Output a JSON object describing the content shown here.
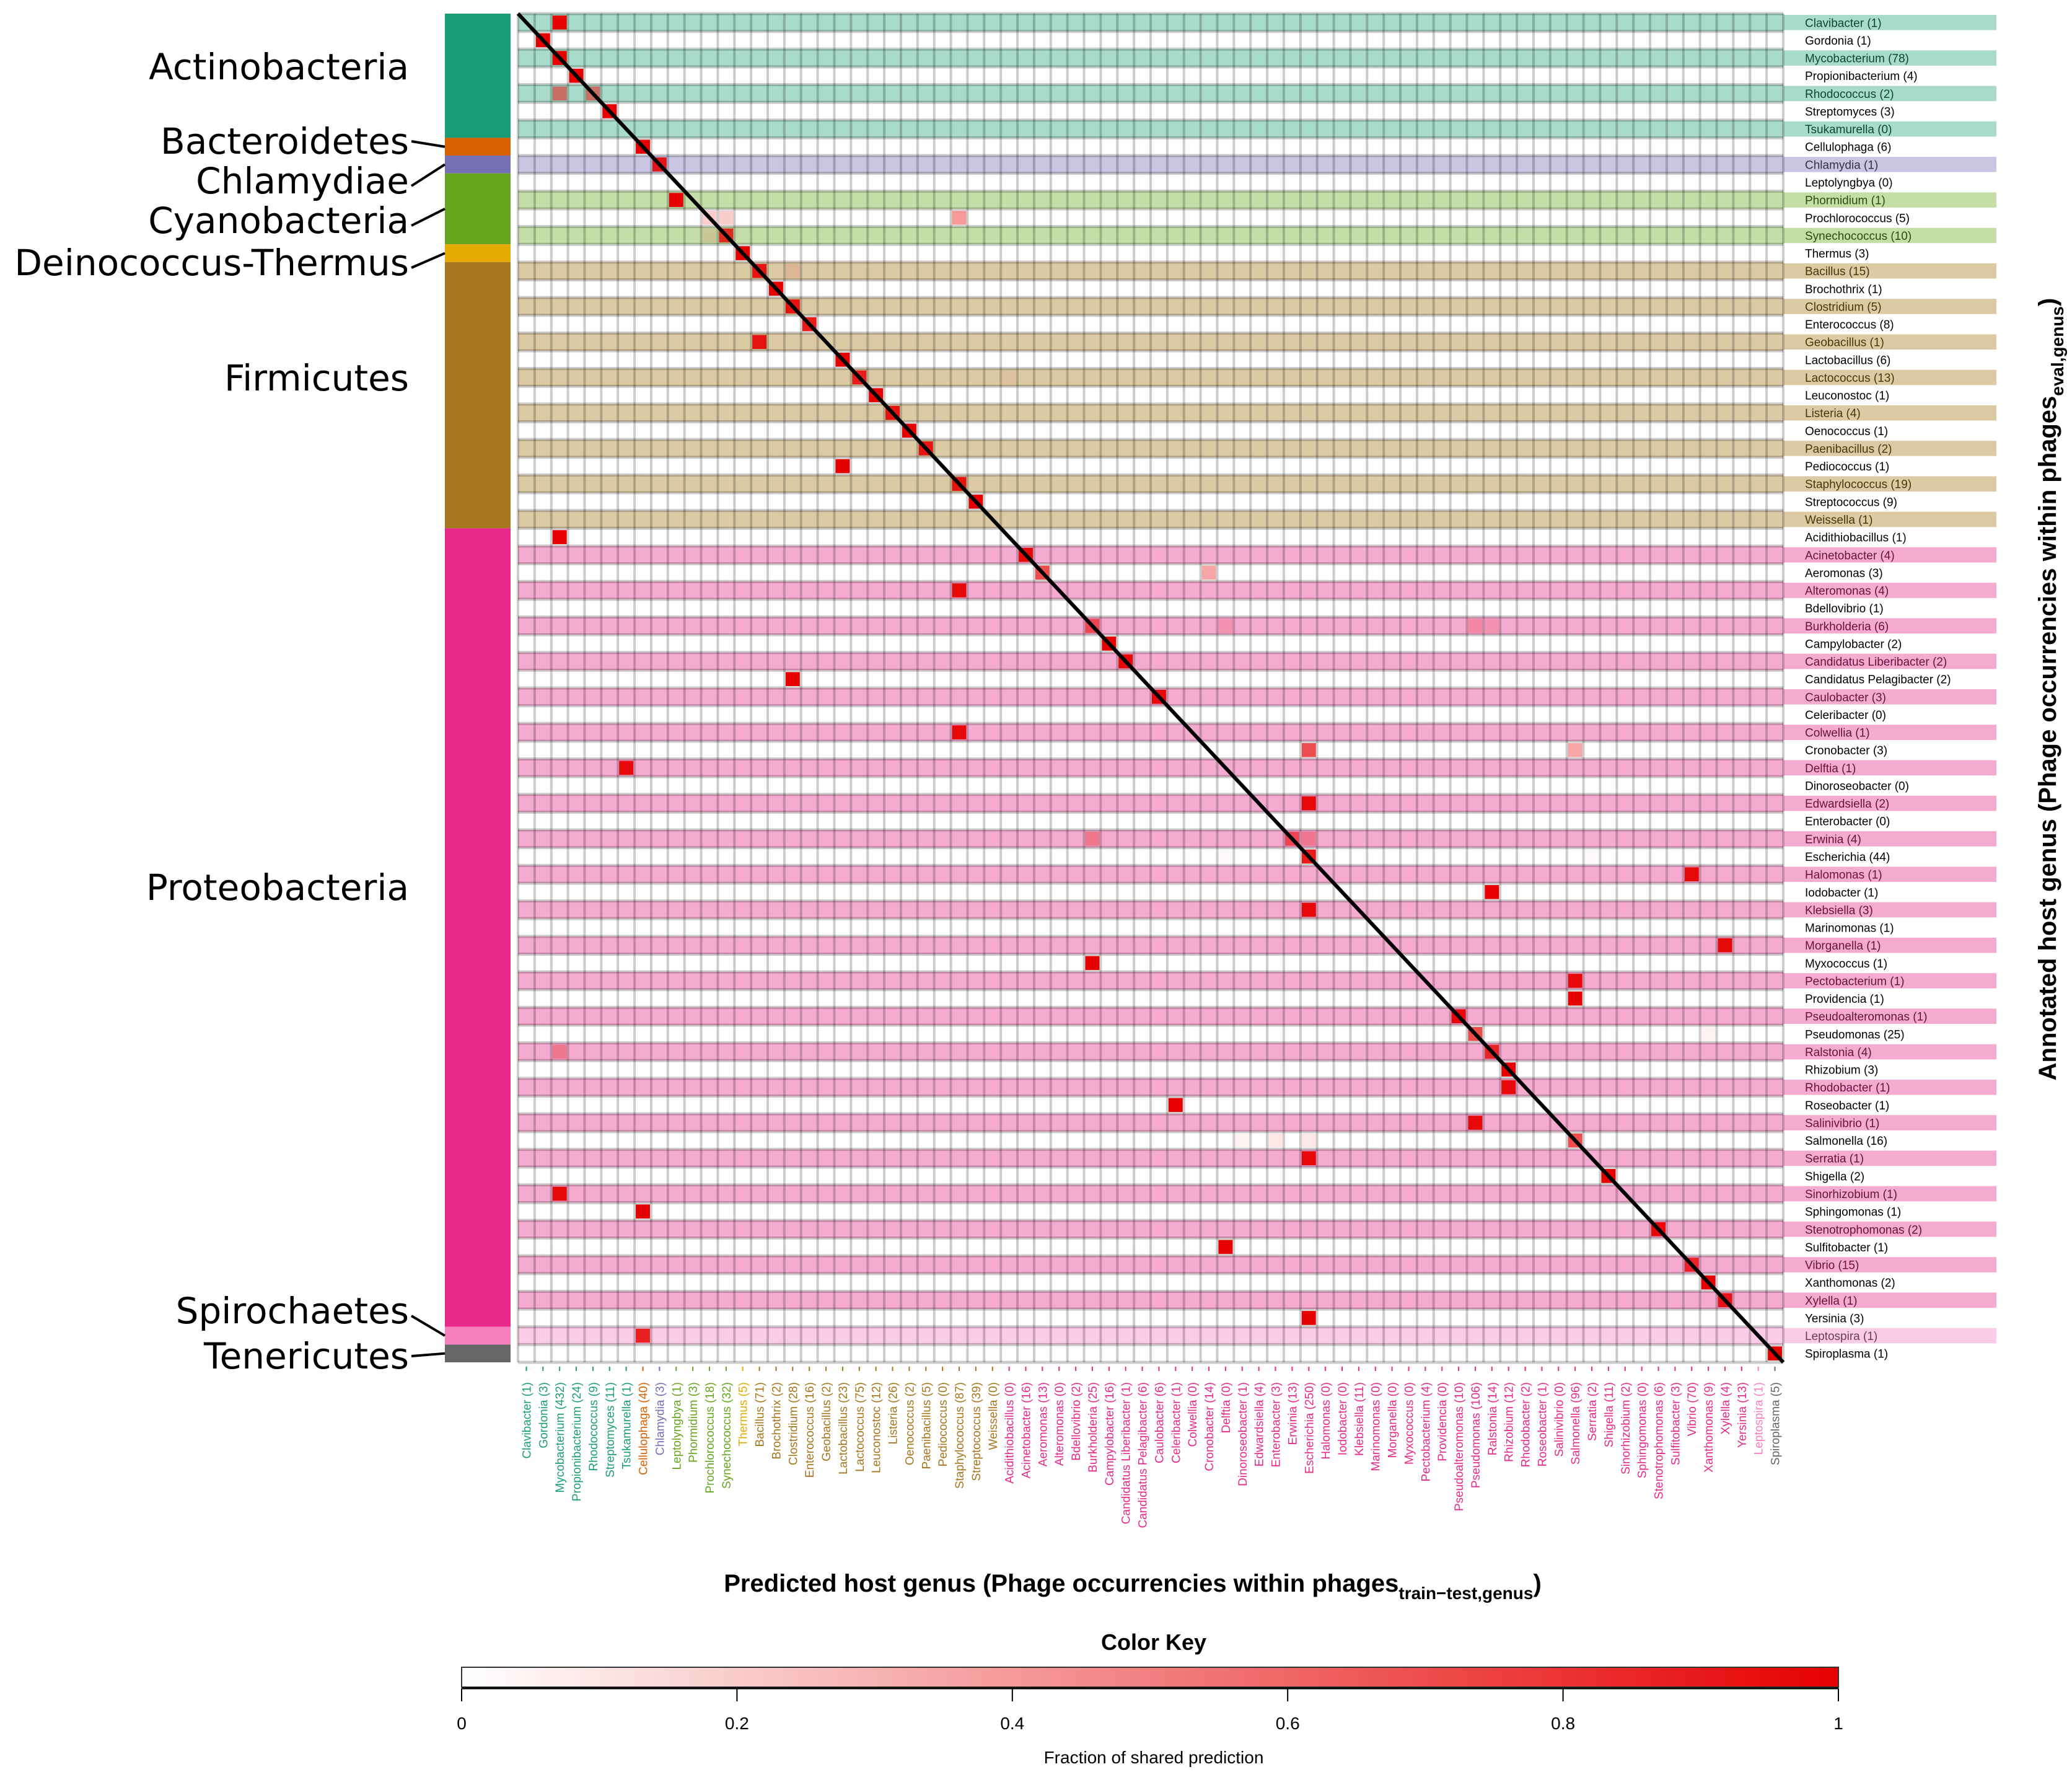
{
  "chart_data": {
    "type": "heatmap",
    "title": "",
    "xlabel": "Predicted host genus (Phage occurrencies within phages",
    "xlabel_subscript": "train−test,genus",
    "xlabel_close": ")",
    "ylabel": "Annotated host genus (Phage occurrencies within phages",
    "ylabel_subscript": "eval,genus",
    "ylabel_close": ")",
    "value_range": [
      0,
      1
    ],
    "color_key": {
      "title": "Color Key",
      "xlabel": "Fraction of shared prediction",
      "ticks": [
        "0",
        "0.2",
        "0.4",
        "0.6",
        "0.8",
        "1"
      ],
      "tick_values": [
        0,
        0.2,
        0.4,
        0.6,
        0.8,
        1
      ],
      "low_color": "#ffffff",
      "high_color": "#e60000"
    },
    "phyla": [
      {
        "name": "Actinobacteria",
        "color": "#1b9e77",
        "row_tint": "#a8dbc9",
        "row_count": 7
      },
      {
        "name": "Bacteroidetes",
        "color": "#d95f02",
        "row_tint": "#f3c29e",
        "row_count": 1
      },
      {
        "name": "Chlamydiae",
        "color": "#7570b3",
        "row_tint": "#c8c6e2",
        "row_count": 1
      },
      {
        "name": "Cyanobacteria",
        "color": "#66a61e",
        "row_tint": "#c5dea8",
        "row_count": 4
      },
      {
        "name": "Deinococcus-Thermus",
        "color": "#e6ab02",
        "row_tint": "#f6de99",
        "row_count": 1
      },
      {
        "name": "Firmicutes",
        "color": "#a6761d",
        "row_tint": "#dccaa5",
        "row_count": 15
      },
      {
        "name": "Proteobacteria",
        "color": "#e7298a",
        "row_tint": "#f5aacf",
        "row_count": 45
      },
      {
        "name": "Spirochaetes",
        "color": "#f781bf",
        "row_tint": "#fbcce5",
        "row_count": 1
      },
      {
        "name": "Tenericutes",
        "color": "#666666",
        "row_tint": "#d1d1d1",
        "row_count": 1
      }
    ],
    "rows": [
      {
        "label": "Clavibacter (1)",
        "phylum": 0
      },
      {
        "label": "Gordonia (1)",
        "phylum": 0
      },
      {
        "label": "Mycobacterium (78)",
        "phylum": 0
      },
      {
        "label": "Propionibacterium (4)",
        "phylum": 0
      },
      {
        "label": "Rhodococcus (2)",
        "phylum": 0
      },
      {
        "label": "Streptomyces (3)",
        "phylum": 0
      },
      {
        "label": "Tsukamurella (0)",
        "phylum": 0
      },
      {
        "label": "Cellulophaga (6)",
        "phylum": 1
      },
      {
        "label": "Chlamydia (1)",
        "phylum": 2
      },
      {
        "label": "Leptolyngbya (0)",
        "phylum": 3
      },
      {
        "label": "Phormidium (1)",
        "phylum": 3
      },
      {
        "label": "Prochlorococcus (5)",
        "phylum": 3
      },
      {
        "label": "Synechococcus (10)",
        "phylum": 3
      },
      {
        "label": "Thermus (3)",
        "phylum": 4
      },
      {
        "label": "Bacillus (15)",
        "phylum": 5
      },
      {
        "label": "Brochothrix (1)",
        "phylum": 5
      },
      {
        "label": "Clostridium (5)",
        "phylum": 5
      },
      {
        "label": "Enterococcus (8)",
        "phylum": 5
      },
      {
        "label": "Geobacillus (1)",
        "phylum": 5
      },
      {
        "label": "Lactobacillus (6)",
        "phylum": 5
      },
      {
        "label": "Lactococcus (13)",
        "phylum": 5
      },
      {
        "label": "Leuconostoc (1)",
        "phylum": 5
      },
      {
        "label": "Listeria (4)",
        "phylum": 5
      },
      {
        "label": "Oenococcus (1)",
        "phylum": 5
      },
      {
        "label": "Paenibacillus (2)",
        "phylum": 5
      },
      {
        "label": "Pediococcus (1)",
        "phylum": 5
      },
      {
        "label": "Staphylococcus (19)",
        "phylum": 5
      },
      {
        "label": "Streptococcus (9)",
        "phylum": 5
      },
      {
        "label": "Weissella (1)",
        "phylum": 5
      },
      {
        "label": "Acidithiobacillus (1)",
        "phylum": 6
      },
      {
        "label": "Acinetobacter (4)",
        "phylum": 6
      },
      {
        "label": "Aeromonas (3)",
        "phylum": 6
      },
      {
        "label": "Alteromonas (4)",
        "phylum": 6
      },
      {
        "label": "Bdellovibrio (1)",
        "phylum": 6
      },
      {
        "label": "Burkholderia (6)",
        "phylum": 6
      },
      {
        "label": "Campylobacter (2)",
        "phylum": 6
      },
      {
        "label": "Candidatus Liberibacter (2)",
        "phylum": 6
      },
      {
        "label": "Candidatus Pelagibacter (2)",
        "phylum": 6
      },
      {
        "label": "Caulobacter (3)",
        "phylum": 6
      },
      {
        "label": "Celeribacter (0)",
        "phylum": 6
      },
      {
        "label": "Colwellia (1)",
        "phylum": 6
      },
      {
        "label": "Cronobacter (3)",
        "phylum": 6
      },
      {
        "label": "Delftia (1)",
        "phylum": 6
      },
      {
        "label": "Dinoroseobacter (0)",
        "phylum": 6
      },
      {
        "label": "Edwardsiella (2)",
        "phylum": 6
      },
      {
        "label": "Enterobacter (0)",
        "phylum": 6
      },
      {
        "label": "Erwinia (4)",
        "phylum": 6
      },
      {
        "label": "Escherichia (44)",
        "phylum": 6
      },
      {
        "label": "Halomonas (1)",
        "phylum": 6
      },
      {
        "label": "Iodobacter (1)",
        "phylum": 6
      },
      {
        "label": "Klebsiella (3)",
        "phylum": 6
      },
      {
        "label": "Marinomonas (1)",
        "phylum": 6
      },
      {
        "label": "Morganella (1)",
        "phylum": 6
      },
      {
        "label": "Myxococcus (1)",
        "phylum": 6
      },
      {
        "label": "Pectobacterium (1)",
        "phylum": 6
      },
      {
        "label": "Providencia (1)",
        "phylum": 6
      },
      {
        "label": "Pseudoalteromonas (1)",
        "phylum": 6
      },
      {
        "label": "Pseudomonas (25)",
        "phylum": 6
      },
      {
        "label": "Ralstonia (4)",
        "phylum": 6
      },
      {
        "label": "Rhizobium (3)",
        "phylum": 6
      },
      {
        "label": "Rhodobacter (1)",
        "phylum": 6
      },
      {
        "label": "Roseobacter (1)",
        "phylum": 6
      },
      {
        "label": "Salinivibrio (1)",
        "phylum": 6
      },
      {
        "label": "Salmonella (16)",
        "phylum": 6
      },
      {
        "label": "Serratia (1)",
        "phylum": 6
      },
      {
        "label": "Shigella (2)",
        "phylum": 6
      },
      {
        "label": "Sinorhizobium (1)",
        "phylum": 6
      },
      {
        "label": "Sphingomonas (1)",
        "phylum": 6
      },
      {
        "label": "Stenotrophomonas (2)",
        "phylum": 6
      },
      {
        "label": "Sulfitobacter (1)",
        "phylum": 6
      },
      {
        "label": "Vibrio (15)",
        "phylum": 6
      },
      {
        "label": "Xanthomonas (2)",
        "phylum": 6
      },
      {
        "label": "Xylella (1)",
        "phylum": 6
      },
      {
        "label": "Yersinia (3)",
        "phylum": 6
      },
      {
        "label": "Leptospira (1)",
        "phylum": 7
      },
      {
        "label": "Spiroplasma (1)",
        "phylum": 8
      }
    ],
    "columns": [
      {
        "label": "Clavibacter (1)",
        "phylum": 0
      },
      {
        "label": "Gordonia (3)",
        "phylum": 0
      },
      {
        "label": "Mycobacterium (432)",
        "phylum": 0
      },
      {
        "label": "Propionibacterium (24)",
        "phylum": 0
      },
      {
        "label": "Rhodococcus (9)",
        "phylum": 0
      },
      {
        "label": "Streptomyces (11)",
        "phylum": 0
      },
      {
        "label": "Tsukamurella (1)",
        "phylum": 0
      },
      {
        "label": "Cellulophaga (40)",
        "phylum": 1
      },
      {
        "label": "Chlamydia (3)",
        "phylum": 2
      },
      {
        "label": "Leptolyngbya (1)",
        "phylum": 3
      },
      {
        "label": "Phormidium (3)",
        "phylum": 3
      },
      {
        "label": "Prochlorococcus (18)",
        "phylum": 3
      },
      {
        "label": "Synechococcus (32)",
        "phylum": 3
      },
      {
        "label": "Thermus (5)",
        "phylum": 4
      },
      {
        "label": "Bacillus (71)",
        "phylum": 5
      },
      {
        "label": "Brochothrix (2)",
        "phylum": 5
      },
      {
        "label": "Clostridium (28)",
        "phylum": 5
      },
      {
        "label": "Enterococcus (16)",
        "phylum": 5
      },
      {
        "label": "Geobacillus (2)",
        "phylum": 5
      },
      {
        "label": "Lactobacillus (23)",
        "phylum": 5
      },
      {
        "label": "Lactococcus (75)",
        "phylum": 5
      },
      {
        "label": "Leuconostoc (12)",
        "phylum": 5
      },
      {
        "label": "Listeria (26)",
        "phylum": 5
      },
      {
        "label": "Oenococcus (2)",
        "phylum": 5
      },
      {
        "label": "Paenibacillus (5)",
        "phylum": 5
      },
      {
        "label": "Pediococcus (0)",
        "phylum": 5
      },
      {
        "label": "Staphylococcus (87)",
        "phylum": 5
      },
      {
        "label": "Streptococcus (39)",
        "phylum": 5
      },
      {
        "label": "Weissella (0)",
        "phylum": 5
      },
      {
        "label": "Acidithiobacillus (0)",
        "phylum": 6
      },
      {
        "label": "Acinetobacter (16)",
        "phylum": 6
      },
      {
        "label": "Aeromonas (13)",
        "phylum": 6
      },
      {
        "label": "Alteromonas (0)",
        "phylum": 6
      },
      {
        "label": "Bdellovibrio (2)",
        "phylum": 6
      },
      {
        "label": "Burkholderia (25)",
        "phylum": 6
      },
      {
        "label": "Campylobacter (16)",
        "phylum": 6
      },
      {
        "label": "Candidatus Liberibacter (1)",
        "phylum": 6
      },
      {
        "label": "Candidatus Pelagibacter (6)",
        "phylum": 6
      },
      {
        "label": "Caulobacter (6)",
        "phylum": 6
      },
      {
        "label": "Celeribacter (1)",
        "phylum": 6
      },
      {
        "label": "Colwellia (0)",
        "phylum": 6
      },
      {
        "label": "Cronobacter (14)",
        "phylum": 6
      },
      {
        "label": "Delftia (0)",
        "phylum": 6
      },
      {
        "label": "Dinoroseobacter (1)",
        "phylum": 6
      },
      {
        "label": "Edwardsiella (4)",
        "phylum": 6
      },
      {
        "label": "Enterobacter (3)",
        "phylum": 6
      },
      {
        "label": "Erwinia (13)",
        "phylum": 6
      },
      {
        "label": "Escherichia (250)",
        "phylum": 6
      },
      {
        "label": "Halomonas (0)",
        "phylum": 6
      },
      {
        "label": "Iodobacter (0)",
        "phylum": 6
      },
      {
        "label": "Klebsiella (11)",
        "phylum": 6
      },
      {
        "label": "Marinomonas (0)",
        "phylum": 6
      },
      {
        "label": "Morganella (0)",
        "phylum": 6
      },
      {
        "label": "Myxococcus (0)",
        "phylum": 6
      },
      {
        "label": "Pectobacterium (4)",
        "phylum": 6
      },
      {
        "label": "Providencia (0)",
        "phylum": 6
      },
      {
        "label": "Pseudoalteromonas (10)",
        "phylum": 6
      },
      {
        "label": "Pseudomonas (106)",
        "phylum": 6
      },
      {
        "label": "Ralstonia (14)",
        "phylum": 6
      },
      {
        "label": "Rhizobium (12)",
        "phylum": 6
      },
      {
        "label": "Rhodobacter (2)",
        "phylum": 6
      },
      {
        "label": "Roseobacter (1)",
        "phylum": 6
      },
      {
        "label": "Salinivibrio (0)",
        "phylum": 6
      },
      {
        "label": "Salmonella (96)",
        "phylum": 6
      },
      {
        "label": "Serratia (2)",
        "phylum": 6
      },
      {
        "label": "Shigella (11)",
        "phylum": 6
      },
      {
        "label": "Sinorhizobium (2)",
        "phylum": 6
      },
      {
        "label": "Sphingomonas (0)",
        "phylum": 6
      },
      {
        "label": "Stenotrophomonas (6)",
        "phylum": 6
      },
      {
        "label": "Sulfitobacter (3)",
        "phylum": 6
      },
      {
        "label": "Vibrio (70)",
        "phylum": 6
      },
      {
        "label": "Xanthomonas (9)",
        "phylum": 6
      },
      {
        "label": "Xylella (4)",
        "phylum": 6
      },
      {
        "label": "Yersinia (13)",
        "phylum": 6
      },
      {
        "label": "Leptospira (1)",
        "phylum": 7
      },
      {
        "label": "Spiroplasma (5)",
        "phylum": 8
      }
    ],
    "cells": [
      [
        0,
        2,
        1.0
      ],
      [
        1,
        1,
        1.0
      ],
      [
        2,
        2,
        1.0
      ],
      [
        3,
        3,
        1.0
      ],
      [
        4,
        2,
        0.5
      ],
      [
        4,
        4,
        0.5
      ],
      [
        5,
        5,
        1.0
      ],
      [
        7,
        7,
        1.0
      ],
      [
        8,
        8,
        0.9
      ],
      [
        10,
        9,
        1.0
      ],
      [
        11,
        11,
        0.2
      ],
      [
        11,
        12,
        0.2
      ],
      [
        11,
        26,
        0.4
      ],
      [
        12,
        11,
        0.1
      ],
      [
        12,
        12,
        0.8
      ],
      [
        13,
        13,
        1.0
      ],
      [
        14,
        14,
        0.9
      ],
      [
        14,
        16,
        0.1
      ],
      [
        15,
        15,
        1.0
      ],
      [
        16,
        16,
        0.9
      ],
      [
        17,
        17,
        0.9
      ],
      [
        18,
        14,
        0.9
      ],
      [
        19,
        19,
        1.0
      ],
      [
        20,
        20,
        0.85
      ],
      [
        20,
        29,
        0.05
      ],
      [
        21,
        21,
        1.0
      ],
      [
        22,
        22,
        0.9
      ],
      [
        23,
        23,
        1.0
      ],
      [
        24,
        24,
        0.9
      ],
      [
        25,
        19,
        1.0
      ],
      [
        26,
        26,
        0.9
      ],
      [
        27,
        27,
        1.0
      ],
      [
        29,
        2,
        1.0
      ],
      [
        30,
        30,
        0.95
      ],
      [
        31,
        31,
        0.7
      ],
      [
        31,
        41,
        0.35
      ],
      [
        32,
        26,
        0.95
      ],
      [
        34,
        34,
        0.6
      ],
      [
        34,
        42,
        0.15
      ],
      [
        34,
        57,
        0.2
      ],
      [
        34,
        58,
        0.15
      ],
      [
        35,
        35,
        1.0
      ],
      [
        36,
        36,
        0.95
      ],
      [
        37,
        16,
        1.0
      ],
      [
        38,
        38,
        0.95
      ],
      [
        40,
        26,
        0.95
      ],
      [
        41,
        47,
        0.7
      ],
      [
        41,
        63,
        0.35
      ],
      [
        42,
        6,
        0.95
      ],
      [
        44,
        47,
        0.95
      ],
      [
        46,
        34,
        0.3
      ],
      [
        46,
        46,
        0.6
      ],
      [
        46,
        47,
        0.3
      ],
      [
        47,
        47,
        0.9
      ],
      [
        47,
        42,
        0.02
      ],
      [
        47,
        64,
        0.02
      ],
      [
        48,
        70,
        0.95
      ],
      [
        49,
        58,
        1.0
      ],
      [
        50,
        47,
        0.95
      ],
      [
        52,
        72,
        0.95
      ],
      [
        53,
        34,
        1.0
      ],
      [
        54,
        63,
        0.95
      ],
      [
        55,
        63,
        1.0
      ],
      [
        56,
        56,
        0.95
      ],
      [
        57,
        57,
        0.7
      ],
      [
        57,
        71,
        0.05
      ],
      [
        58,
        2,
        0.3
      ],
      [
        58,
        58,
        0.8
      ],
      [
        59,
        59,
        1.0
      ],
      [
        60,
        59,
        0.95
      ],
      [
        61,
        39,
        1.0
      ],
      [
        62,
        57,
        0.95
      ],
      [
        63,
        43,
        0.05
      ],
      [
        63,
        45,
        0.1
      ],
      [
        63,
        47,
        0.1
      ],
      [
        63,
        63,
        0.7
      ],
      [
        64,
        47,
        0.95
      ],
      [
        65,
        65,
        1.0
      ],
      [
        66,
        2,
        0.95
      ],
      [
        67,
        7,
        1.0
      ],
      [
        68,
        68,
        0.95
      ],
      [
        69,
        42,
        1.0
      ],
      [
        70,
        70,
        0.8
      ],
      [
        71,
        71,
        1.0
      ],
      [
        72,
        72,
        0.9
      ],
      [
        73,
        47,
        1.0
      ],
      [
        74,
        7,
        0.85
      ],
      [
        75,
        75,
        1.0
      ]
    ],
    "diagonal_line": true,
    "grid": true
  }
}
